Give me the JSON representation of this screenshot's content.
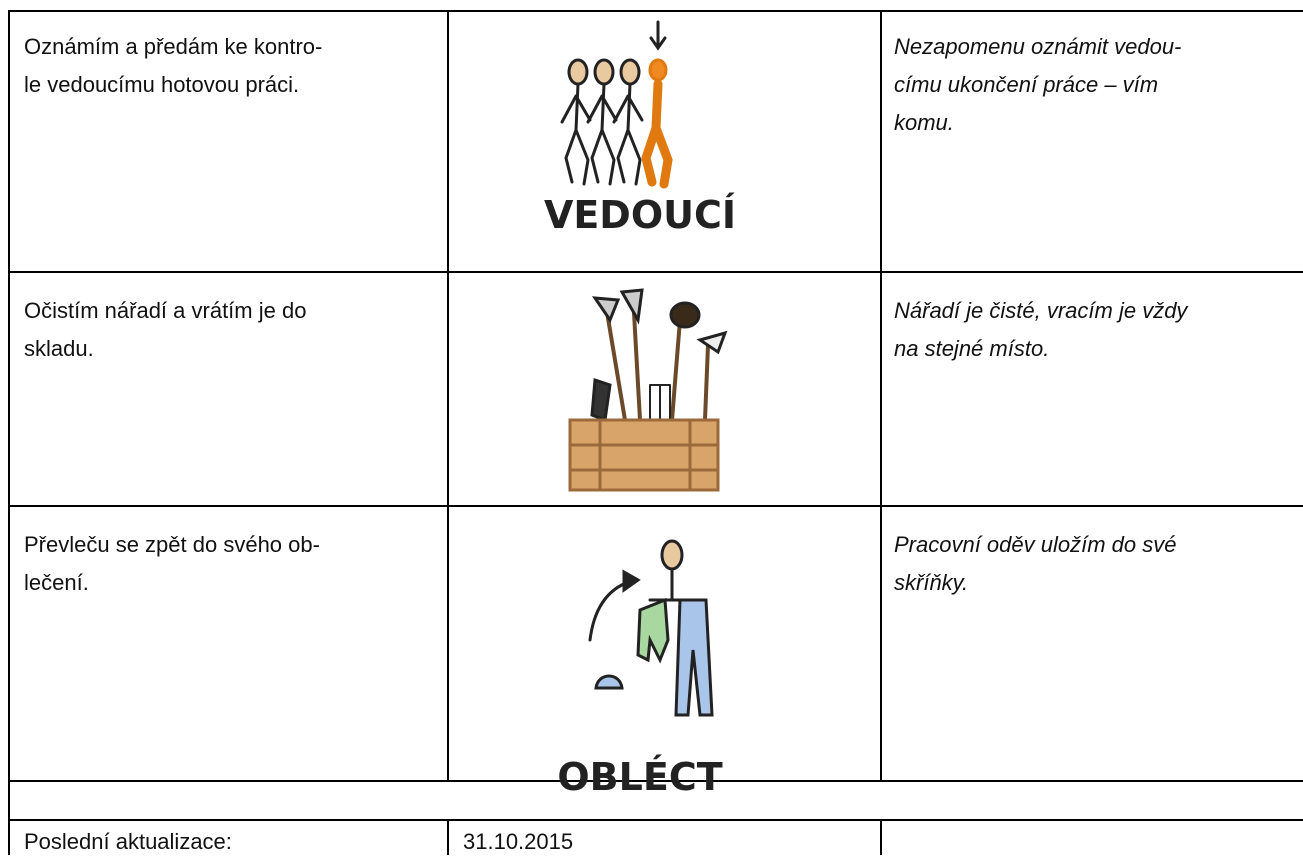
{
  "rows": [
    {
      "task": [
        "Oznámím a předám ke kontro-",
        "le vedoucímu hotovou práci."
      ],
      "pictogram_label": "VEDOUCÍ",
      "note": [
        "Nezapomenu oznámit vedou-",
        "címu ukončení práce – vím",
        "komu."
      ]
    },
    {
      "task": [
        "Očistím nářadí a vrátím je do",
        "skladu."
      ],
      "note": [
        "Nářadí je čisté, vracím je vždy",
        "na stejné místo."
      ]
    },
    {
      "task": [
        "Převleču se zpět do svého ob-",
        "lečení."
      ],
      "pictogram_label": "OBLÉCT",
      "note": [
        "Pracovní oděv uložím do své",
        "skříňky."
      ]
    }
  ],
  "footer": {
    "label": "Poslední aktualizace:",
    "date": "31.10.2015"
  }
}
